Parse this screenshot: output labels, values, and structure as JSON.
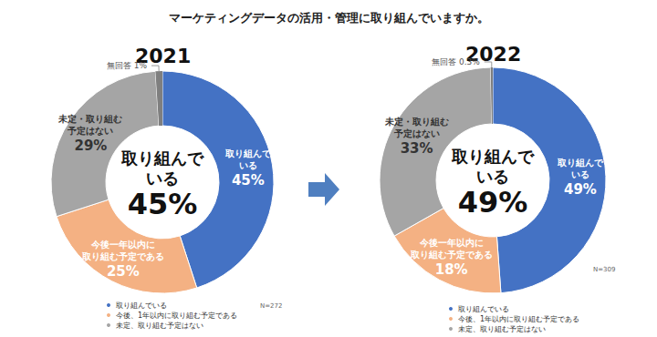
{
  "title": "マーケティングデータの活用・管理に取り組んでいますか。",
  "chart_data": [
    {
      "type": "pie",
      "title": "2021",
      "categories": [
        "取り組んでいる",
        "今後、1年以内に取り組む予定である",
        "未定、取り組む予定はない",
        null
      ],
      "slice_labels": [
        "取り組んで\nいる",
        "今後一年以内に\n取り組む予定である",
        "未定・取り組む\n予定はない",
        "無回答"
      ],
      "values": [
        45,
        25,
        29,
        1
      ],
      "value_labels": [
        "45%",
        "25%",
        "29%",
        "1%"
      ],
      "colors": [
        "#4472c4",
        "#f4b183",
        "#a5a5a5",
        "#7f7f7f"
      ],
      "center_label": "取り組んで\nいる",
      "note": "N=272",
      "data_labels": true,
      "legend": "bottom-left"
    },
    {
      "type": "pie",
      "title": "2022",
      "categories": [
        "取り組んでいる",
        "今後、1年以内に取り組む予定である",
        "未定、取り組む予定はない",
        null
      ],
      "slice_labels": [
        "取り組んで\nいる",
        "今後一年以内に\n取り組む予定である",
        "未定・取り組む\n予定はない",
        "無回答"
      ],
      "values": [
        49,
        18,
        33,
        0.3
      ],
      "value_labels": [
        "49%",
        "18%",
        "33%",
        "0.3%"
      ],
      "colors": [
        "#4472c4",
        "#f4b183",
        "#a5a5a5",
        "#7f7f7f"
      ],
      "center_label": "取り組んで\nいる",
      "note": "N=309",
      "data_labels": true,
      "legend": "bottom-left"
    }
  ]
}
